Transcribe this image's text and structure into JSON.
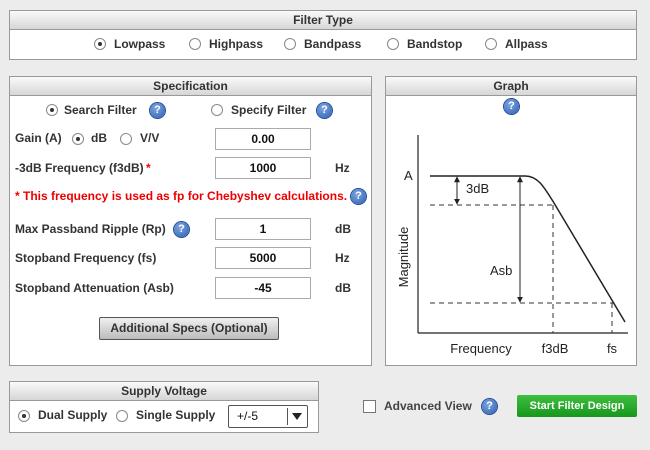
{
  "filter_type": {
    "title": "Filter Type",
    "options": [
      {
        "label": "Lowpass",
        "selected": true
      },
      {
        "label": "Highpass",
        "selected": false
      },
      {
        "label": "Bandpass",
        "selected": false
      },
      {
        "label": "Bandstop",
        "selected": false
      },
      {
        "label": "Allpass",
        "selected": false
      }
    ]
  },
  "specification": {
    "title": "Specification",
    "mode_options": [
      {
        "label": "Search Filter",
        "selected": true
      },
      {
        "label": "Specify Filter",
        "selected": false
      }
    ],
    "gain": {
      "label": "Gain (A)",
      "unit_options": [
        {
          "label": "dB",
          "selected": true
        },
        {
          "label": "V/V",
          "selected": false
        }
      ],
      "value": "0.00"
    },
    "f3db": {
      "label": "-3dB Frequency (f3dB)",
      "required_mark": "*",
      "value": "1000",
      "unit": "Hz"
    },
    "note": "* This frequency is used as fp for Chebyshev calculations.",
    "rp": {
      "label": "Max Passband Ripple (Rp)",
      "value": "1",
      "unit": "dB"
    },
    "fs": {
      "label": "Stopband Frequency (fs)",
      "value": "5000",
      "unit": "Hz"
    },
    "asb": {
      "label": "Stopband Attenuation (Asb)",
      "value": "-45",
      "unit": "dB"
    },
    "additional_button": "Additional Specs (Optional)"
  },
  "graph": {
    "title": "Graph",
    "y_label": "Magnitude",
    "x_label": "Frequency",
    "a_label": "A",
    "f3db_label": "f3dB",
    "fs_label": "fs",
    "ripple_label": "3dB",
    "asb_label": "Asb"
  },
  "supply_voltage": {
    "title": "Supply Voltage",
    "options": [
      {
        "label": "Dual Supply",
        "selected": true
      },
      {
        "label": "Single Supply",
        "selected": false
      }
    ],
    "voltage": "+/-5"
  },
  "advanced_view": {
    "label": "Advanced View",
    "checked": false
  },
  "start_button": "Start Filter Design"
}
